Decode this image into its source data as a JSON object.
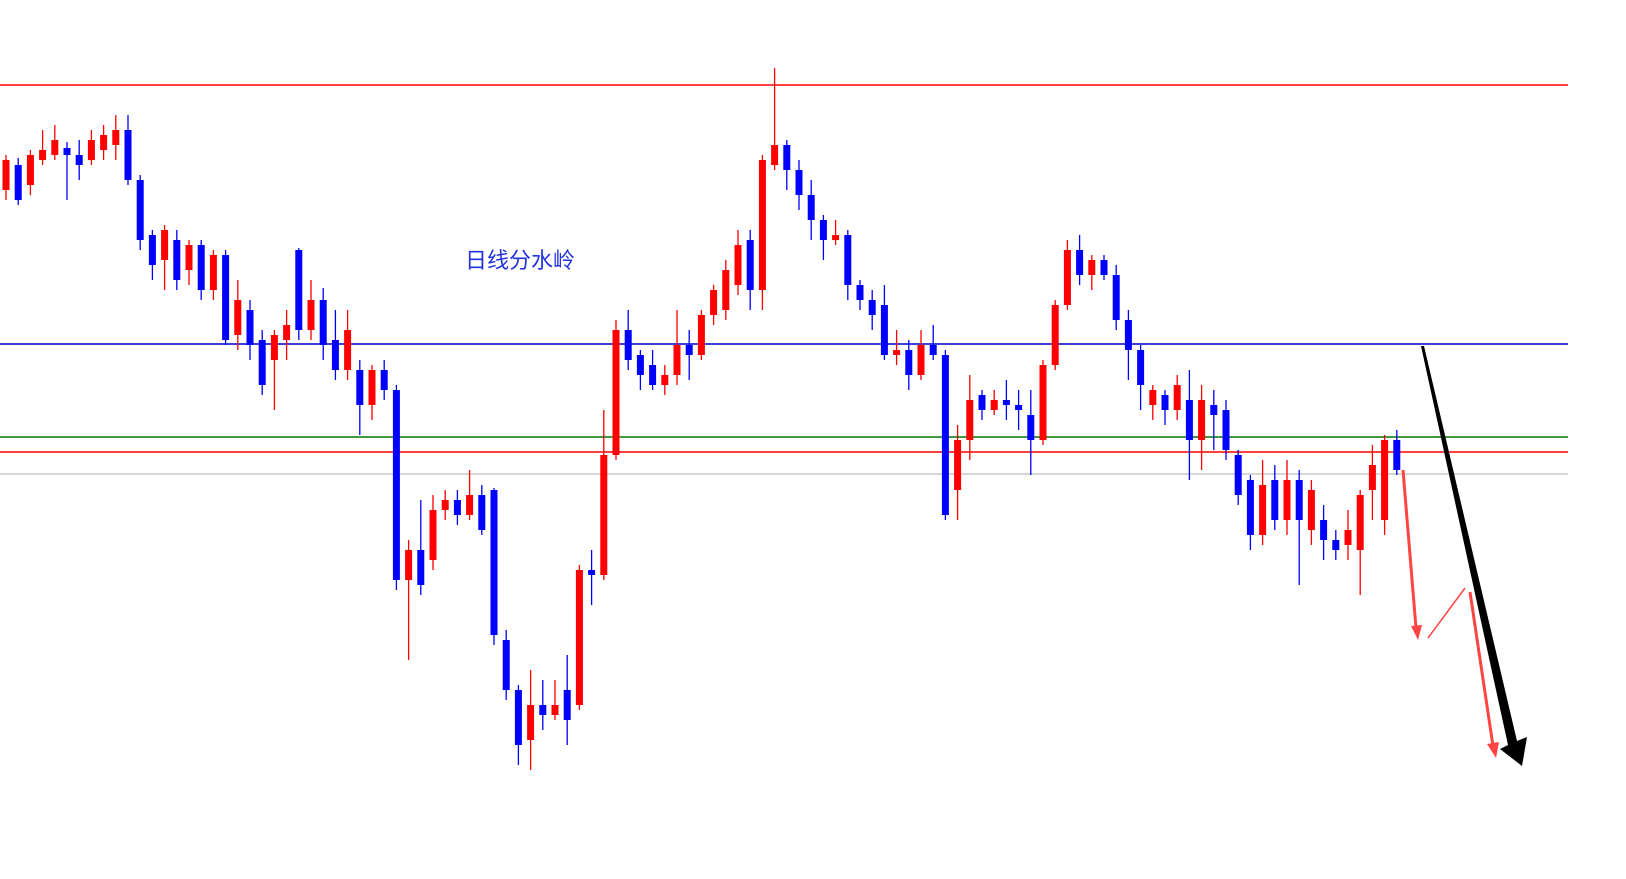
{
  "chart_data": {
    "type": "candlestick",
    "ylim": [
      121,
      1000
    ],
    "up_color": "#ff0000",
    "down_color": "#0000ff",
    "open": [
      810,
      835,
      815,
      840,
      845,
      852,
      845,
      840,
      850,
      855,
      870,
      820,
      765,
      740,
      760,
      730,
      755,
      710,
      745,
      665,
      690,
      660,
      640,
      660,
      750,
      670,
      700,
      660,
      630,
      630,
      595,
      630,
      610,
      420,
      450,
      440,
      490,
      500,
      485,
      505,
      510,
      360,
      310,
      260,
      295,
      285,
      310,
      295,
      430,
      425,
      545,
      670,
      645,
      635,
      615,
      625,
      655,
      645,
      685,
      690,
      715,
      760,
      710,
      835,
      855,
      830,
      805,
      780,
      760,
      765,
      715,
      700,
      695,
      645,
      650,
      625,
      655,
      645,
      510,
      560,
      605,
      590,
      600,
      595,
      585,
      560,
      635,
      695,
      750,
      725,
      740,
      725,
      680,
      650,
      595,
      605,
      590,
      600,
      560,
      595,
      590,
      545,
      520,
      465,
      520,
      480,
      520,
      470,
      480,
      460,
      455,
      450,
      510,
      480,
      560
    ],
    "high": [
      845,
      842,
      850,
      870,
      875,
      858,
      860,
      870,
      875,
      885,
      885,
      825,
      770,
      775,
      770,
      760,
      760,
      750,
      750,
      720,
      700,
      670,
      670,
      690,
      752,
      720,
      712,
      690,
      690,
      640,
      635,
      640,
      615,
      460,
      500,
      505,
      510,
      510,
      530,
      515,
      512,
      370,
      315,
      330,
      320,
      320,
      345,
      435,
      450,
      590,
      680,
      690,
      650,
      650,
      635,
      690,
      670,
      690,
      715,
      740,
      770,
      770,
      845,
      932,
      860,
      840,
      820,
      785,
      780,
      770,
      720,
      710,
      715,
      670,
      660,
      670,
      675,
      650,
      575,
      625,
      610,
      610,
      620,
      610,
      610,
      640,
      700,
      760,
      765,
      745,
      745,
      735,
      690,
      655,
      615,
      610,
      625,
      630,
      615,
      610,
      600,
      550,
      525,
      540,
      535,
      540,
      530,
      520,
      495,
      470,
      490,
      510,
      555,
      565,
      570
    ],
    "low": [
      800,
      795,
      805,
      835,
      840,
      800,
      820,
      835,
      840,
      840,
      815,
      750,
      720,
      710,
      710,
      715,
      700,
      700,
      655,
      650,
      640,
      605,
      590,
      640,
      660,
      660,
      640,
      620,
      620,
      565,
      580,
      600,
      410,
      340,
      405,
      430,
      480,
      475,
      480,
      465,
      355,
      300,
      235,
      230,
      270,
      280,
      255,
      290,
      395,
      420,
      540,
      630,
      610,
      610,
      605,
      615,
      620,
      640,
      675,
      680,
      705,
      690,
      690,
      830,
      810,
      790,
      760,
      740,
      755,
      700,
      690,
      670,
      640,
      635,
      610,
      620,
      640,
      480,
      480,
      540,
      580,
      585,
      580,
      570,
      525,
      555,
      630,
      690,
      715,
      710,
      720,
      670,
      620,
      590,
      580,
      575,
      580,
      520,
      530,
      550,
      540,
      495,
      450,
      455,
      470,
      465,
      415,
      455,
      440,
      440,
      440,
      405,
      480,
      465,
      525
    ],
    "close": [
      840,
      800,
      845,
      850,
      860,
      845,
      835,
      860,
      865,
      870,
      820,
      760,
      735,
      770,
      720,
      755,
      710,
      745,
      660,
      700,
      655,
      615,
      665,
      675,
      670,
      700,
      655,
      630,
      670,
      595,
      630,
      610,
      420,
      450,
      415,
      490,
      500,
      485,
      505,
      470,
      365,
      310,
      255,
      295,
      285,
      295,
      280,
      430,
      425,
      545,
      670,
      640,
      625,
      615,
      625,
      655,
      645,
      685,
      710,
      730,
      755,
      710,
      840,
      855,
      830,
      805,
      780,
      760,
      765,
      715,
      700,
      685,
      645,
      650,
      625,
      655,
      645,
      485,
      560,
      600,
      590,
      600,
      595,
      590,
      560,
      635,
      695,
      750,
      725,
      740,
      725,
      680,
      650,
      615,
      610,
      590,
      615,
      560,
      600,
      585,
      550,
      505,
      465,
      515,
      480,
      520,
      480,
      510,
      460,
      450,
      470,
      505,
      535,
      560,
      530
    ],
    "levels": [
      {
        "value": 915,
        "color": "#ff0000"
      },
      {
        "value": 656,
        "color": "#0000cc"
      },
      {
        "value": 563,
        "color": "#007700"
      },
      {
        "value": 548,
        "color": "#ff0000"
      },
      {
        "value": 526,
        "color": "#c8c8c8"
      }
    ],
    "annotation": "日线分水岭"
  }
}
